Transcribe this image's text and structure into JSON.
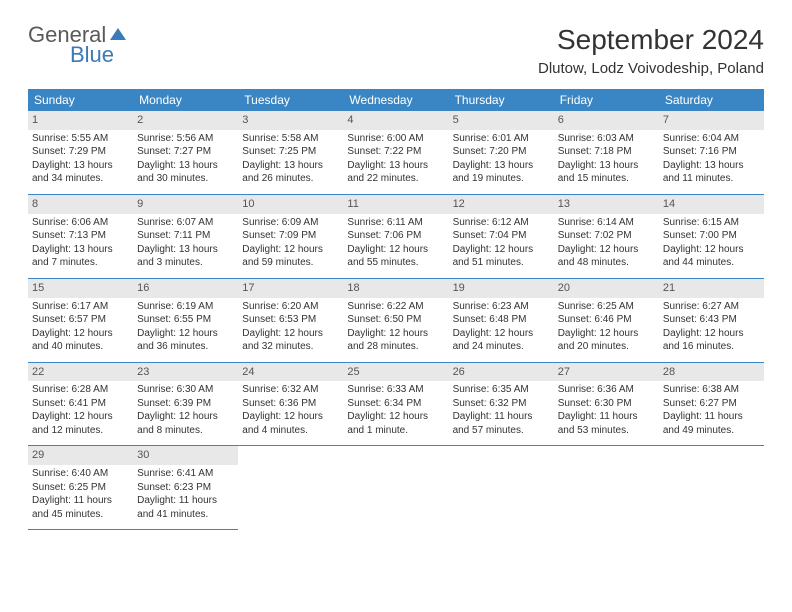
{
  "logo": {
    "text1": "General",
    "text2": "Blue",
    "icon_color": "#3a7ab8"
  },
  "title": "September 2024",
  "location": "Dlutow, Lodz Voivodeship, Poland",
  "colors": {
    "header_bg": "#3a86c4",
    "header_fg": "#ffffff",
    "daynum_bg": "#e8e8e8",
    "border": "#3a86c4"
  },
  "weekdays": [
    "Sunday",
    "Monday",
    "Tuesday",
    "Wednesday",
    "Thursday",
    "Friday",
    "Saturday"
  ],
  "days": [
    {
      "n": "1",
      "sr": "5:55 AM",
      "ss": "7:29 PM",
      "dl": "13 hours and 34 minutes."
    },
    {
      "n": "2",
      "sr": "5:56 AM",
      "ss": "7:27 PM",
      "dl": "13 hours and 30 minutes."
    },
    {
      "n": "3",
      "sr": "5:58 AM",
      "ss": "7:25 PM",
      "dl": "13 hours and 26 minutes."
    },
    {
      "n": "4",
      "sr": "6:00 AM",
      "ss": "7:22 PM",
      "dl": "13 hours and 22 minutes."
    },
    {
      "n": "5",
      "sr": "6:01 AM",
      "ss": "7:20 PM",
      "dl": "13 hours and 19 minutes."
    },
    {
      "n": "6",
      "sr": "6:03 AM",
      "ss": "7:18 PM",
      "dl": "13 hours and 15 minutes."
    },
    {
      "n": "7",
      "sr": "6:04 AM",
      "ss": "7:16 PM",
      "dl": "13 hours and 11 minutes."
    },
    {
      "n": "8",
      "sr": "6:06 AM",
      "ss": "7:13 PM",
      "dl": "13 hours and 7 minutes."
    },
    {
      "n": "9",
      "sr": "6:07 AM",
      "ss": "7:11 PM",
      "dl": "13 hours and 3 minutes."
    },
    {
      "n": "10",
      "sr": "6:09 AM",
      "ss": "7:09 PM",
      "dl": "12 hours and 59 minutes."
    },
    {
      "n": "11",
      "sr": "6:11 AM",
      "ss": "7:06 PM",
      "dl": "12 hours and 55 minutes."
    },
    {
      "n": "12",
      "sr": "6:12 AM",
      "ss": "7:04 PM",
      "dl": "12 hours and 51 minutes."
    },
    {
      "n": "13",
      "sr": "6:14 AM",
      "ss": "7:02 PM",
      "dl": "12 hours and 48 minutes."
    },
    {
      "n": "14",
      "sr": "6:15 AM",
      "ss": "7:00 PM",
      "dl": "12 hours and 44 minutes."
    },
    {
      "n": "15",
      "sr": "6:17 AM",
      "ss": "6:57 PM",
      "dl": "12 hours and 40 minutes."
    },
    {
      "n": "16",
      "sr": "6:19 AM",
      "ss": "6:55 PM",
      "dl": "12 hours and 36 minutes."
    },
    {
      "n": "17",
      "sr": "6:20 AM",
      "ss": "6:53 PM",
      "dl": "12 hours and 32 minutes."
    },
    {
      "n": "18",
      "sr": "6:22 AM",
      "ss": "6:50 PM",
      "dl": "12 hours and 28 minutes."
    },
    {
      "n": "19",
      "sr": "6:23 AM",
      "ss": "6:48 PM",
      "dl": "12 hours and 24 minutes."
    },
    {
      "n": "20",
      "sr": "6:25 AM",
      "ss": "6:46 PM",
      "dl": "12 hours and 20 minutes."
    },
    {
      "n": "21",
      "sr": "6:27 AM",
      "ss": "6:43 PM",
      "dl": "12 hours and 16 minutes."
    },
    {
      "n": "22",
      "sr": "6:28 AM",
      "ss": "6:41 PM",
      "dl": "12 hours and 12 minutes."
    },
    {
      "n": "23",
      "sr": "6:30 AM",
      "ss": "6:39 PM",
      "dl": "12 hours and 8 minutes."
    },
    {
      "n": "24",
      "sr": "6:32 AM",
      "ss": "6:36 PM",
      "dl": "12 hours and 4 minutes."
    },
    {
      "n": "25",
      "sr": "6:33 AM",
      "ss": "6:34 PM",
      "dl": "12 hours and 1 minute."
    },
    {
      "n": "26",
      "sr": "6:35 AM",
      "ss": "6:32 PM",
      "dl": "11 hours and 57 minutes."
    },
    {
      "n": "27",
      "sr": "6:36 AM",
      "ss": "6:30 PM",
      "dl": "11 hours and 53 minutes."
    },
    {
      "n": "28",
      "sr": "6:38 AM",
      "ss": "6:27 PM",
      "dl": "11 hours and 49 minutes."
    },
    {
      "n": "29",
      "sr": "6:40 AM",
      "ss": "6:25 PM",
      "dl": "11 hours and 45 minutes."
    },
    {
      "n": "30",
      "sr": "6:41 AM",
      "ss": "6:23 PM",
      "dl": "11 hours and 41 minutes."
    }
  ],
  "labels": {
    "sunrise": "Sunrise:",
    "sunset": "Sunset:",
    "daylight": "Daylight:"
  }
}
